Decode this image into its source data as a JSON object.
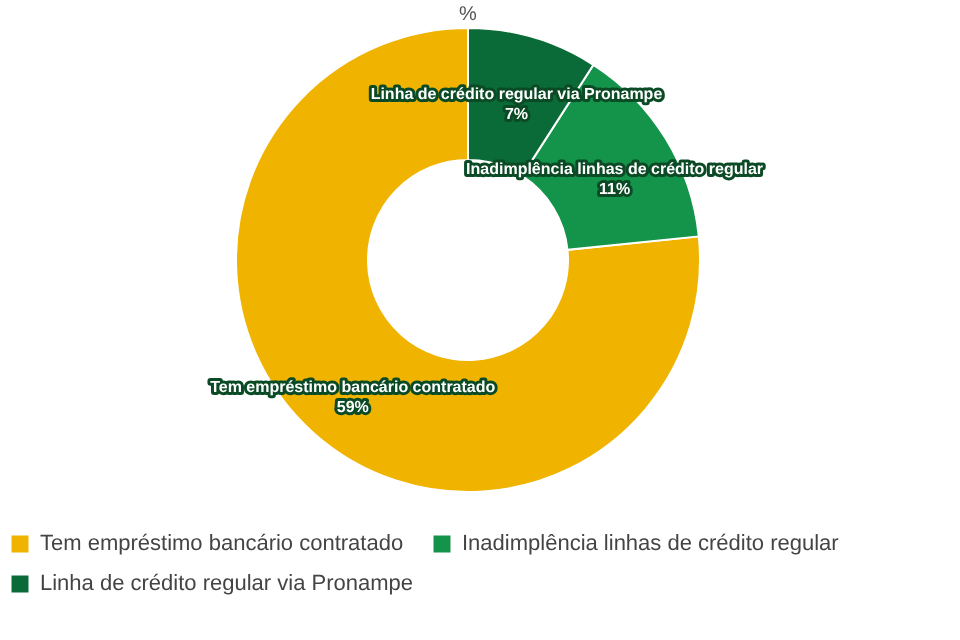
{
  "chart_data": {
    "type": "donut",
    "subtitle": "%",
    "categories": [
      "Tem empréstimo bancário contratado",
      "Inadimplência linhas de crédito regular",
      "Linha de crédito regular via Pronampe"
    ],
    "values": [
      59,
      11,
      7
    ],
    "colors": [
      "#f0b400",
      "#14934a",
      "#0b6b38"
    ],
    "value_labels": [
      "59%",
      "11%",
      "7%"
    ],
    "legend": "bottom"
  }
}
